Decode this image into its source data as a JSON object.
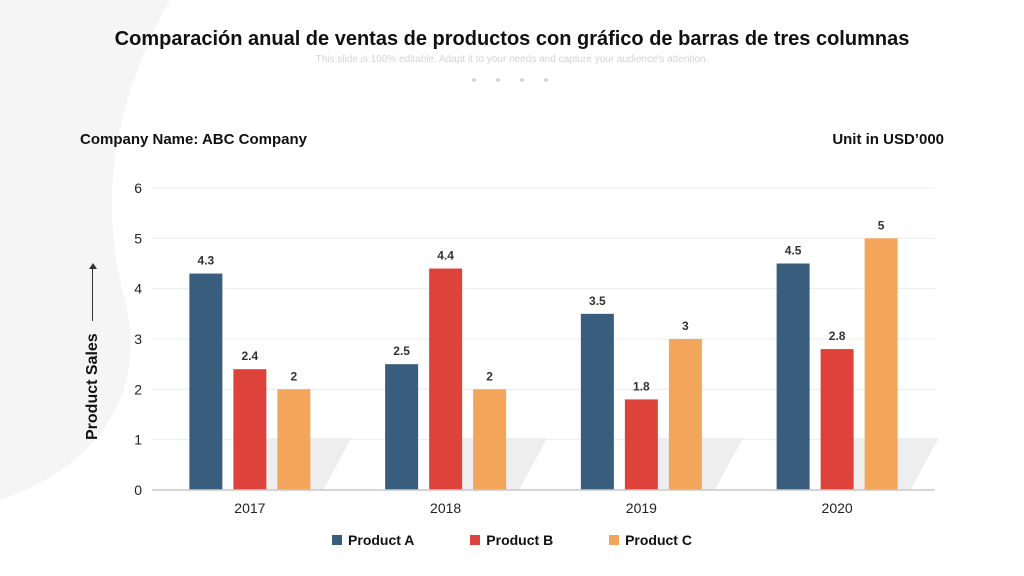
{
  "slide": {
    "title": "Comparación anual de ventas de productos con gráfico de barras de tres columnas",
    "subtitle": "This slide is 100% editable. Adapt it to your needs and capture your audience's attention.",
    "company": "Company Name: ABC Company",
    "unit": "Unit in USD’000"
  },
  "chart_data": {
    "type": "bar",
    "ylabel": "Product Sales",
    "xlabel": "",
    "ylim": [
      0,
      6
    ],
    "yticks": [
      0,
      1,
      2,
      3,
      4,
      5,
      6
    ],
    "grid": true,
    "legend_position": "bottom",
    "categories": [
      "2017",
      "2018",
      "2019",
      "2020"
    ],
    "series": [
      {
        "name": "Product A",
        "color": "#395d7c",
        "values": [
          4.3,
          2.5,
          3.5,
          4.5
        ],
        "labels": [
          "4.3",
          "2.5",
          "3.5",
          "4.5"
        ]
      },
      {
        "name": "Product B",
        "color": "#de433b",
        "values": [
          2.4,
          4.4,
          1.8,
          2.8
        ],
        "labels": [
          "2.4",
          "4.4",
          "1.8",
          "2.8"
        ]
      },
      {
        "name": "Product C",
        "color": "#f4a55c",
        "values": [
          2,
          2,
          3,
          5
        ],
        "labels": [
          "2",
          "2",
          "3",
          "5"
        ]
      }
    ]
  }
}
